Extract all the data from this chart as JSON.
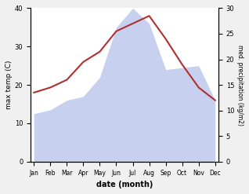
{
  "months": [
    "Jan",
    "Feb",
    "Mar",
    "Apr",
    "May",
    "Jun",
    "Jul",
    "Aug",
    "Sep",
    "Oct",
    "Nov",
    "Dec"
  ],
  "temp": [
    13.5,
    14.5,
    16.0,
    19.5,
    21.5,
    25.5,
    27.0,
    28.5,
    24.0,
    19.0,
    14.5,
    12.0
  ],
  "precip": [
    12.5,
    13.5,
    16.0,
    17.0,
    22.0,
    35.0,
    40.0,
    36.0,
    24.0,
    24.5,
    25.0,
    16.0
  ],
  "temp_color": "#b03030",
  "precip_fill_color": "#c8d0f0",
  "xlabel": "date (month)",
  "ylabel_left": "max temp (C)",
  "ylabel_right": "med. precipitation (kg/m2)",
  "ylim_left": [
    0,
    40
  ],
  "ylim_right": [
    0,
    30
  ],
  "yticks_left": [
    0,
    10,
    20,
    30,
    40
  ],
  "yticks_right": [
    0,
    5,
    10,
    15,
    20,
    25,
    30
  ],
  "bg_color": "#f0f0f0",
  "plot_bg_color": "#ffffff"
}
